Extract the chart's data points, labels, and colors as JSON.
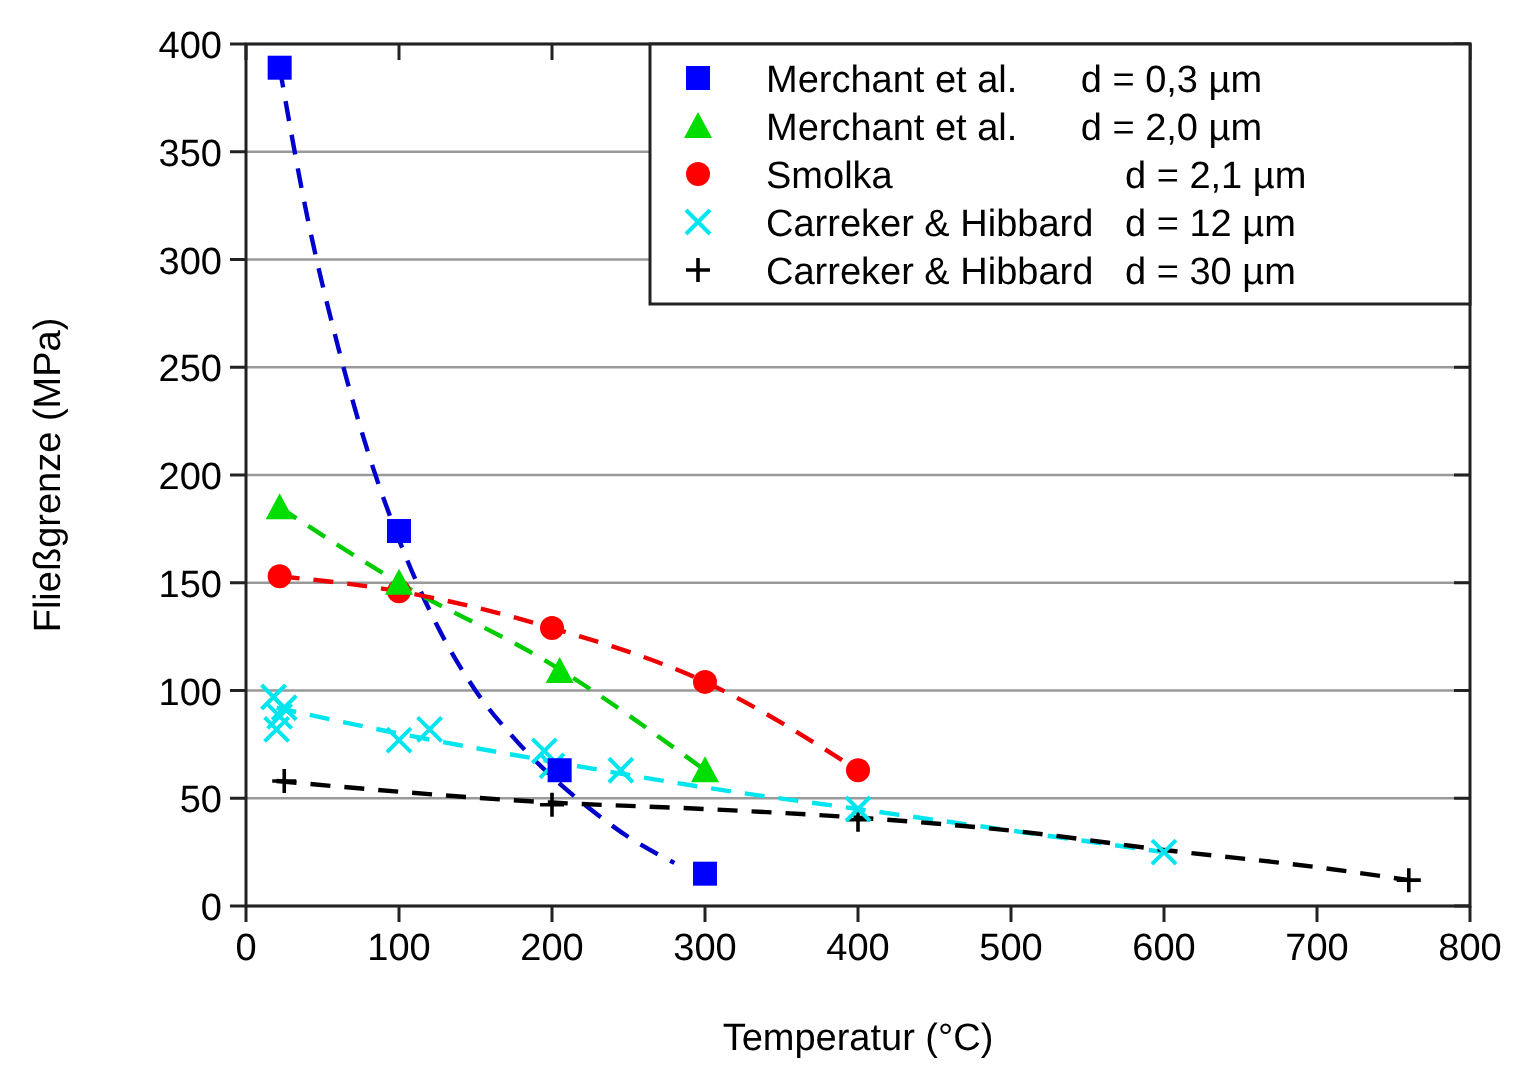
{
  "chart_data": {
    "type": "scatter",
    "xlabel": "Temperatur (°C)",
    "ylabel": "Fließgrenze (MPa)",
    "xlim": [
      0,
      800
    ],
    "xticks": [
      0,
      100,
      200,
      300,
      400,
      500,
      600,
      700,
      800
    ],
    "ylim": [
      0,
      400
    ],
    "yticks": [
      0,
      50,
      100,
      150,
      200,
      250,
      300,
      350,
      400
    ],
    "grid": "y",
    "legend": "top right",
    "series": [
      {
        "name": "Merchant et al.      d = 0,3 µm",
        "color": "#0000ff",
        "marker": "square",
        "x": [
          22,
          100,
          205,
          300
        ],
        "values": [
          389,
          174,
          63,
          15
        ]
      },
      {
        "name": "Merchant et al.      d = 2,0 µm",
        "color": "#00dd00",
        "marker": "triangle",
        "x": [
          22,
          100,
          205,
          300
        ],
        "values": [
          185,
          150,
          109,
          63
        ]
      },
      {
        "name": "Smolka                      d = 2,1 µm",
        "color": "#ff0000",
        "marker": "circle",
        "x": [
          22,
          100,
          200,
          300,
          400
        ],
        "values": [
          153,
          146,
          129,
          104,
          63
        ]
      },
      {
        "name": "Carreker & Hibbard   d = 12 µm",
        "color": "#00e5ee",
        "marker": "cross",
        "x": [
          18,
          20,
          22,
          25,
          100,
          120,
          195,
          200,
          245,
          400,
          600
        ],
        "values": [
          97,
          82,
          88,
          92,
          77,
          82,
          72,
          65,
          63,
          45,
          25
        ]
      },
      {
        "name": "Carreker & Hibbard   d = 30 µm",
        "color": "#000000",
        "marker": "plus",
        "x": [
          25,
          200,
          400,
          760
        ],
        "values": [
          58,
          47,
          40,
          12
        ]
      },
      {
        "type": "line",
        "line_style": "dashed",
        "color": "#0000cc",
        "x": [
          22,
          40,
          60,
          80,
          100,
          125,
          150,
          175,
          200,
          225,
          250,
          280
        ],
        "values": [
          389,
          320,
          260,
          210,
          170,
          130,
          100,
          78,
          60,
          45,
          32,
          20
        ]
      },
      {
        "type": "line",
        "line_style": "dashed",
        "color": "#00cc00",
        "x": [
          22,
          100,
          200,
          300
        ],
        "values": [
          185,
          150,
          112,
          63
        ]
      },
      {
        "type": "line",
        "line_style": "dashed",
        "color": "#ee0000",
        "x": [
          22,
          100,
          200,
          300,
          400
        ],
        "values": [
          153,
          146,
          129,
          104,
          63
        ]
      },
      {
        "type": "line",
        "line_style": "dashed",
        "color": "#00e5ee",
        "x": [
          20,
          100,
          200,
          300,
          400,
          500,
          600
        ],
        "values": [
          92,
          80,
          67,
          55,
          45,
          35,
          25
        ]
      },
      {
        "type": "line",
        "line_style": "dashed",
        "color": "#000000",
        "x": [
          20,
          200,
          300,
          400,
          500,
          600,
          700,
          760
        ],
        "values": [
          58,
          48,
          45,
          41,
          35,
          26,
          18,
          12
        ]
      }
    ]
  }
}
